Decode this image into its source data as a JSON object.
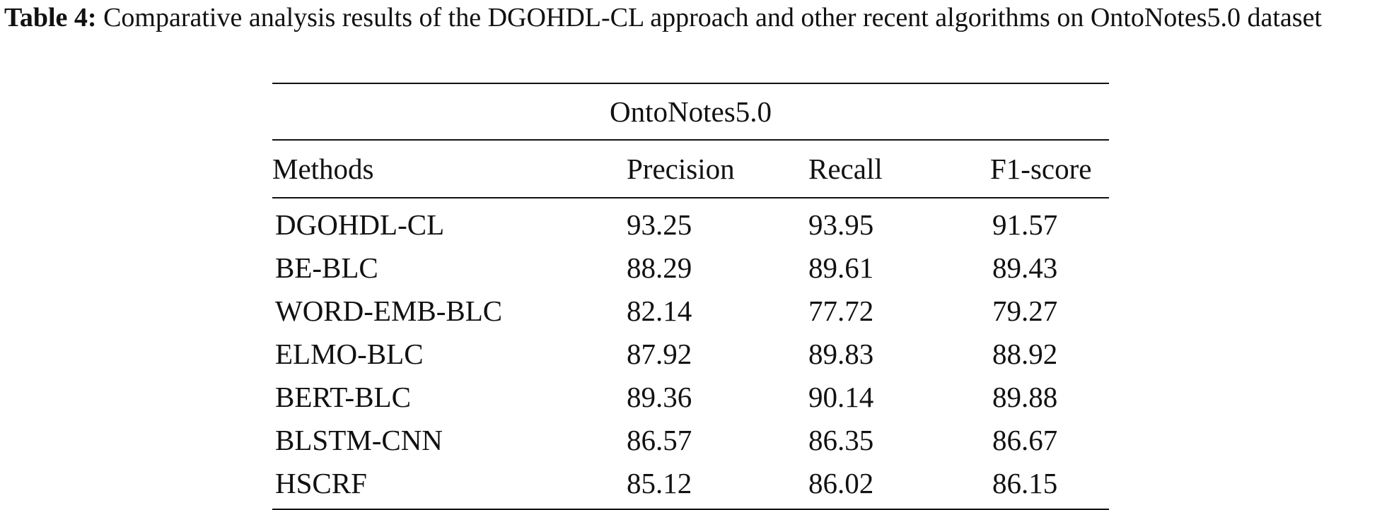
{
  "caption": {
    "label": "Table 4:",
    "text": "Comparative analysis results of the DGOHDL-CL approach and other recent algorithms on OntoNotes5.0 dataset"
  },
  "table": {
    "group_header": "OntoNotes5.0",
    "columns": [
      "Methods",
      "Precision",
      "Recall",
      "F1-score"
    ],
    "rows": [
      {
        "method": "DGOHDL-CL",
        "precision": "93.25",
        "recall": "93.95",
        "f1": "91.57"
      },
      {
        "method": "BE-BLC",
        "precision": "88.29",
        "recall": "89.61",
        "f1": "89.43"
      },
      {
        "method": "WORD-EMB-BLC",
        "precision": "82.14",
        "recall": "77.72",
        "f1": "79.27"
      },
      {
        "method": "ELMO-BLC",
        "precision": "87.92",
        "recall": "89.83",
        "f1": "88.92"
      },
      {
        "method": "BERT-BLC",
        "precision": "89.36",
        "recall": "90.14",
        "f1": "89.88"
      },
      {
        "method": "BLSTM-CNN",
        "precision": "86.57",
        "recall": "86.35",
        "f1": "86.67"
      },
      {
        "method": "HSCRF",
        "precision": "85.12",
        "recall": "86.02",
        "f1": "86.15"
      }
    ]
  }
}
